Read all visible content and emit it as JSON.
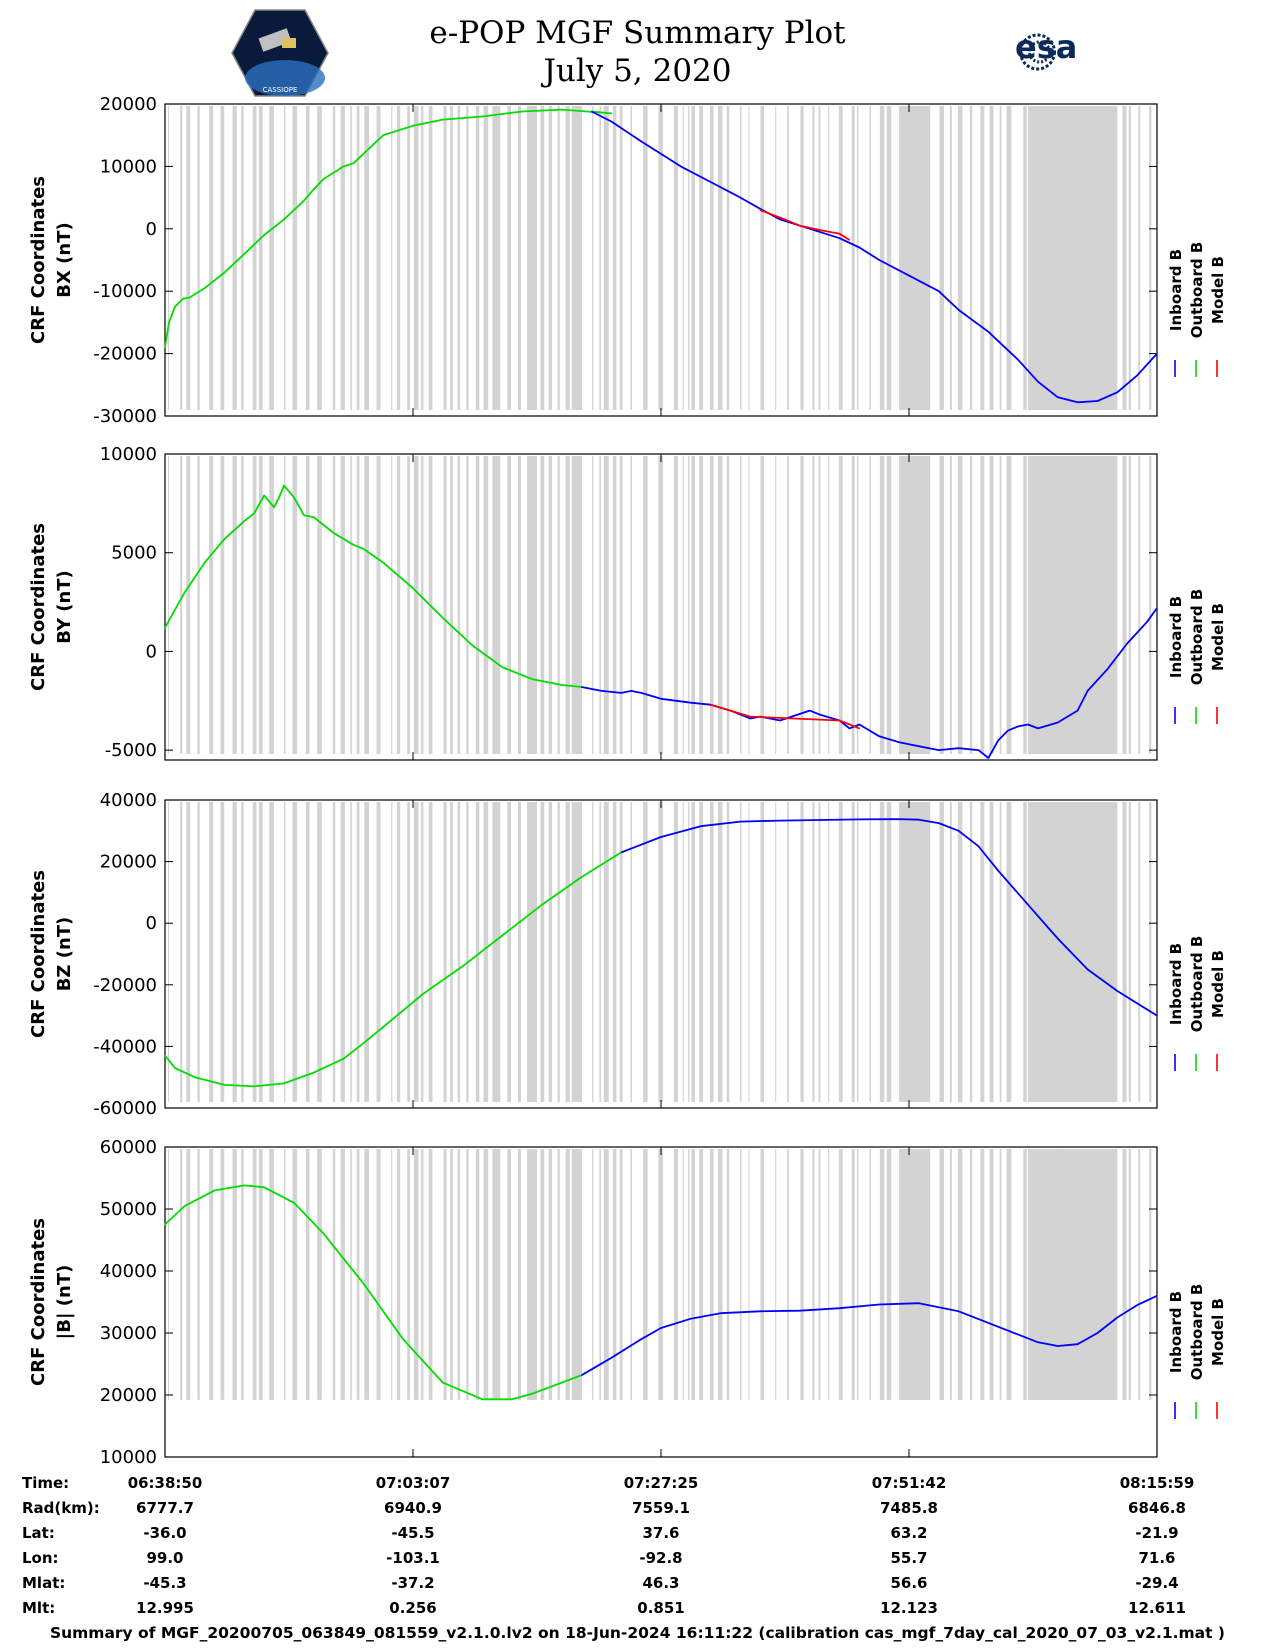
{
  "header": {
    "title_line1": "e-POP MGF Summary Plot",
    "title_line2": "July 5, 2020",
    "logo_left_text": "CASSIOPE",
    "logo_right_text": "esa"
  },
  "colors": {
    "inboard": "#0000ff",
    "outboard": "#00dd00",
    "model": "#ff0000",
    "gap_band": "#d3d3d3"
  },
  "legend": [
    "Inboard B",
    "Outboard B",
    "Model B"
  ],
  "chart_data": [
    {
      "type": "line",
      "ylabel_line1": "CRF Coordinates",
      "ylabel_line2": "BX (nT)",
      "ylim": [
        -30000,
        20000
      ],
      "yticks": [
        20000,
        10000,
        0,
        -10000,
        -20000,
        -30000
      ],
      "xlim": [
        0,
        1
      ],
      "outboard": {
        "x": [
          0,
          0.004,
          0.01,
          0.018,
          0.025,
          0.04,
          0.06,
          0.08,
          0.1,
          0.12,
          0.14,
          0.148,
          0.16,
          0.18,
          0.19,
          0.2,
          0.22,
          0.25,
          0.28,
          0.32,
          0.36,
          0.4,
          0.45,
          0.43
        ],
        "y": [
          -19000,
          -15000,
          -12500,
          -11200,
          -11000,
          -9500,
          -7000,
          -4000,
          -1000,
          1500,
          4500,
          6000,
          8000,
          10000,
          10500,
          12000,
          15000,
          16500,
          17500,
          18000,
          18800,
          19100,
          18500,
          18800
        ]
      },
      "inboard": {
        "x": [
          0.43,
          0.45,
          0.48,
          0.5,
          0.52,
          0.55,
          0.58,
          0.6,
          0.62,
          0.65,
          0.68,
          0.7,
          0.72,
          0.75,
          0.78,
          0.8,
          0.83,
          0.86,
          0.88,
          0.9,
          0.92,
          0.94,
          0.96,
          0.98,
          1.0
        ],
        "y": [
          18800,
          17200,
          14000,
          12000,
          10000,
          7500,
          5000,
          3200,
          1500,
          0,
          -1500,
          -3000,
          -5000,
          -7500,
          -10000,
          -13000,
          -16500,
          -21000,
          -24500,
          -27000,
          -27800,
          -27600,
          -26200,
          -23500,
          -20000
        ]
      },
      "model": {
        "x": [
          0.6,
          0.62,
          0.64,
          0.66,
          0.68,
          0.69
        ],
        "y": [
          3000,
          1800,
          500,
          -200,
          -800,
          -1800
        ]
      }
    },
    {
      "type": "line",
      "ylabel_line1": "CRF Coordinates",
      "ylabel_line2": "BY (nT)",
      "ylim": [
        -5500,
        10000
      ],
      "yticks": [
        10000,
        5000,
        0,
        -5000
      ],
      "xlim": [
        0,
        1
      ],
      "outboard": {
        "x": [
          0,
          0.02,
          0.04,
          0.06,
          0.08,
          0.09,
          0.1,
          0.11,
          0.115,
          0.12,
          0.13,
          0.14,
          0.15,
          0.17,
          0.19,
          0.2,
          0.22,
          0.25,
          0.28,
          0.31,
          0.34,
          0.37,
          0.4,
          0.42
        ],
        "y": [
          1200,
          3000,
          4500,
          5700,
          6600,
          7000,
          7900,
          7300,
          7800,
          8400,
          7800,
          6900,
          6800,
          6000,
          5400,
          5200,
          4500,
          3200,
          1700,
          300,
          -800,
          -1400,
          -1700,
          -1800
        ]
      },
      "inboard": {
        "x": [
          0.42,
          0.44,
          0.46,
          0.47,
          0.48,
          0.5,
          0.53,
          0.55,
          0.57,
          0.59,
          0.6,
          0.62,
          0.65,
          0.66,
          0.68,
          0.69,
          0.7,
          0.71,
          0.72,
          0.74,
          0.76,
          0.78,
          0.8,
          0.82,
          0.83,
          0.84,
          0.85,
          0.86,
          0.87,
          0.88,
          0.9,
          0.92,
          0.93,
          0.95,
          0.97,
          0.99,
          1.0
        ],
        "y": [
          -1800,
          -2000,
          -2100,
          -2000,
          -2100,
          -2400,
          -2600,
          -2700,
          -3000,
          -3400,
          -3300,
          -3500,
          -3000,
          -3200,
          -3500,
          -3900,
          -3700,
          -4000,
          -4300,
          -4600,
          -4800,
          -5000,
          -4900,
          -5000,
          -5400,
          -4500,
          -4000,
          -3800,
          -3700,
          -3900,
          -3600,
          -3000,
          -2000,
          -900,
          400,
          1500,
          2200
        ]
      },
      "model": {
        "x": [
          0.55,
          0.57,
          0.59,
          0.68,
          0.7
        ],
        "y": [
          -2700,
          -3000,
          -3300,
          -3500,
          -3900
        ]
      }
    },
    {
      "type": "line",
      "ylabel_line1": "CRF Coordinates",
      "ylabel_line2": "BZ (nT)",
      "ylim": [
        -60000,
        40000
      ],
      "yticks": [
        40000,
        20000,
        0,
        -20000,
        -40000,
        -60000
      ],
      "xlim": [
        0,
        1
      ],
      "outboard": {
        "x": [
          0,
          0.01,
          0.03,
          0.06,
          0.09,
          0.12,
          0.15,
          0.18,
          0.2,
          0.23,
          0.26,
          0.3,
          0.34,
          0.38,
          0.42,
          0.45,
          0.46
        ],
        "y": [
          -43000,
          -47000,
          -50000,
          -52500,
          -53000,
          -52000,
          -48500,
          -44000,
          -39000,
          -31000,
          -23000,
          -14000,
          -4000,
          6000,
          15000,
          21000,
          23000
        ]
      },
      "inboard": {
        "x": [
          0.46,
          0.5,
          0.54,
          0.58,
          0.62,
          0.66,
          0.7,
          0.74,
          0.76,
          0.78,
          0.8,
          0.82,
          0.84,
          0.87,
          0.9,
          0.93,
          0.96,
          1.0
        ],
        "y": [
          23000,
          28000,
          31500,
          33000,
          33300,
          33500,
          33700,
          33800,
          33600,
          32500,
          30000,
          25000,
          17000,
          6000,
          -5000,
          -15000,
          -22000,
          -30000
        ]
      },
      "model": {
        "x": [],
        "y": []
      }
    },
    {
      "type": "line",
      "ylabel_line1": "CRF Coordinates",
      "ylabel_line2": "|B| (nT)",
      "ylim": [
        10000,
        60000
      ],
      "yticks": [
        60000,
        50000,
        40000,
        30000,
        20000,
        10000
      ],
      "xlim": [
        0,
        1
      ],
      "outboard": {
        "x": [
          0,
          0.02,
          0.05,
          0.08,
          0.1,
          0.13,
          0.16,
          0.2,
          0.24,
          0.28,
          0.32,
          0.35,
          0.37,
          0.4,
          0.42
        ],
        "y": [
          47500,
          50500,
          53000,
          53800,
          53500,
          51000,
          46000,
          38000,
          29000,
          22000,
          19300,
          19300,
          20200,
          22000,
          23200
        ]
      },
      "inboard": {
        "x": [
          0.42,
          0.45,
          0.48,
          0.5,
          0.53,
          0.56,
          0.6,
          0.64,
          0.68,
          0.72,
          0.76,
          0.8,
          0.84,
          0.88,
          0.9,
          0.92,
          0.94,
          0.96,
          0.98,
          1.0
        ],
        "y": [
          23200,
          26000,
          29000,
          30800,
          32300,
          33200,
          33500,
          33600,
          34000,
          34600,
          34800,
          33500,
          31000,
          28500,
          27900,
          28200,
          30000,
          32500,
          34500,
          36000
        ]
      },
      "model": {
        "x": [],
        "y": []
      }
    }
  ],
  "info_table": {
    "labels": [
      "Time:",
      "Rad(km):",
      "Lat:",
      "Lon:",
      "Mlat:",
      "Mlt:"
    ],
    "columns": [
      [
        "06:38:50",
        "6777.7",
        "-36.0",
        "99.0",
        "-45.3",
        "12.995"
      ],
      [
        "07:03:07",
        "6940.9",
        "-45.5",
        "-103.1",
        "-37.2",
        "0.256"
      ],
      [
        "07:27:25",
        "7559.1",
        "37.6",
        "-92.8",
        "46.3",
        "0.851"
      ],
      [
        "07:51:42",
        "7485.8",
        "63.2",
        "55.7",
        "56.6",
        "12.123"
      ],
      [
        "08:15:59",
        "6846.8",
        "-21.9",
        "71.6",
        "-29.4",
        "12.611"
      ]
    ]
  },
  "footer": "Summary of MGF_20200705_063849_081559_v2.1.0.lv2 on 18-Jun-2024 16:11:22 (calibration cas_mgf_7day_cal_2020_07_03_v2.1.mat )"
}
